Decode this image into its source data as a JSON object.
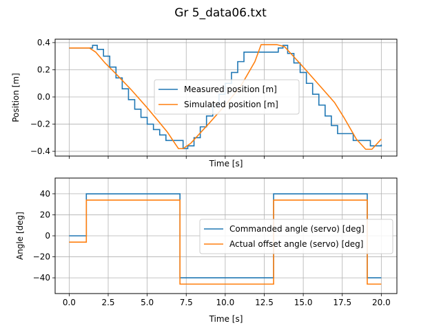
{
  "figure": {
    "title": "Gr 5_data06.txt",
    "colors": {
      "series1": "#1f77b4",
      "series2": "#ff7f0e",
      "grid": "#b0b0b0",
      "frame": "#000000"
    }
  },
  "chart_data": [
    {
      "type": "line",
      "title": "",
      "xlabel": "Time [s]",
      "ylabel": "Position [m]",
      "xlim": [
        -0.9,
        21.0
      ],
      "ylim": [
        -0.435,
        0.425
      ],
      "xticks": [
        0,
        2.5,
        5,
        7.5,
        10,
        12.5,
        15,
        17.5,
        20
      ],
      "xtick_labels": [
        "",
        "",
        "",
        "",
        "",
        "",
        "",
        "",
        ""
      ],
      "yticks": [
        -0.4,
        -0.2,
        0.0,
        0.2,
        0.4
      ],
      "ytick_labels": [
        "−0.4",
        "−0.2",
        "0.0",
        "0.2",
        "0.4"
      ],
      "grid": true,
      "legend_position": "center",
      "series": [
        {
          "name": "Measured position [m]",
          "color": "#1f77b4",
          "style": "steps",
          "x": [
            0,
            1.5,
            1.8,
            2.2,
            2.6,
            3.0,
            3.4,
            3.8,
            4.2,
            4.6,
            5.0,
            5.4,
            5.8,
            6.2,
            7.0,
            7.3,
            7.6,
            8.0,
            8.4,
            8.8,
            9.2,
            9.6,
            10.0,
            10.4,
            10.8,
            11.2,
            13.0,
            13.4,
            13.7,
            14.0,
            14.4,
            14.8,
            15.2,
            15.6,
            16.0,
            16.4,
            16.8,
            17.2,
            18.2,
            19.0,
            19.3,
            19.7,
            20.0
          ],
          "y": [
            0.36,
            0.38,
            0.35,
            0.3,
            0.22,
            0.14,
            0.06,
            -0.02,
            -0.09,
            -0.15,
            -0.2,
            -0.24,
            -0.28,
            -0.32,
            -0.32,
            -0.38,
            -0.36,
            -0.3,
            -0.22,
            -0.14,
            -0.06,
            0.02,
            0.1,
            0.18,
            0.26,
            0.33,
            0.33,
            0.36,
            0.38,
            0.32,
            0.25,
            0.18,
            0.1,
            0.02,
            -0.06,
            -0.14,
            -0.21,
            -0.27,
            -0.32,
            -0.32,
            -0.36,
            -0.36,
            -0.35
          ]
        },
        {
          "name": "Simulated position [m]",
          "color": "#ff7f0e",
          "style": "line",
          "x": [
            0,
            1.3,
            1.7,
            2.3,
            3.0,
            4.0,
            5.0,
            5.8,
            6.3,
            7.0,
            7.3,
            7.8,
            8.2,
            9.0,
            10.0,
            11.0,
            11.9,
            12.3,
            13.3,
            13.8,
            14.2,
            15.0,
            16.0,
            17.0,
            17.6,
            18.4,
            19.0,
            19.4,
            20.0
          ],
          "y": [
            0.36,
            0.36,
            0.33,
            0.25,
            0.17,
            0.05,
            -0.08,
            -0.19,
            -0.26,
            -0.38,
            -0.38,
            -0.34,
            -0.29,
            -0.19,
            -0.06,
            0.08,
            0.26,
            0.385,
            0.385,
            0.37,
            0.32,
            0.22,
            0.09,
            -0.04,
            -0.15,
            -0.31,
            -0.385,
            -0.385,
            -0.31
          ]
        }
      ]
    },
    {
      "type": "line",
      "title": "",
      "xlabel": "Time [s]",
      "ylabel": "Angle [deg]",
      "xlim": [
        -0.9,
        21.0
      ],
      "ylim": [
        -55,
        55
      ],
      "xticks": [
        0,
        2.5,
        5,
        7.5,
        10,
        12.5,
        15,
        17.5,
        20
      ],
      "xtick_labels": [
        "0.0",
        "2.5",
        "5.0",
        "7.5",
        "10.0",
        "12.5",
        "15.0",
        "17.5",
        "20.0"
      ],
      "yticks": [
        -40,
        -20,
        0,
        20,
        40
      ],
      "ytick_labels": [
        "−40",
        "−20",
        "0",
        "20",
        "40"
      ],
      "grid": true,
      "legend_position": "center-right",
      "series": [
        {
          "name": "Commanded angle (servo) [deg]",
          "color": "#1f77b4",
          "style": "steps",
          "x": [
            0,
            1.1,
            7.1,
            13.1,
            19.1,
            20.0
          ],
          "y": [
            0,
            40,
            -40,
            40,
            -40,
            -40
          ]
        },
        {
          "name": "Actual offset angle (servo) [deg]",
          "color": "#ff7f0e",
          "style": "steps",
          "x": [
            0,
            1.1,
            7.1,
            13.1,
            19.1,
            20.0
          ],
          "y": [
            -6,
            34,
            -46,
            34,
            -46,
            -46
          ]
        }
      ]
    }
  ]
}
